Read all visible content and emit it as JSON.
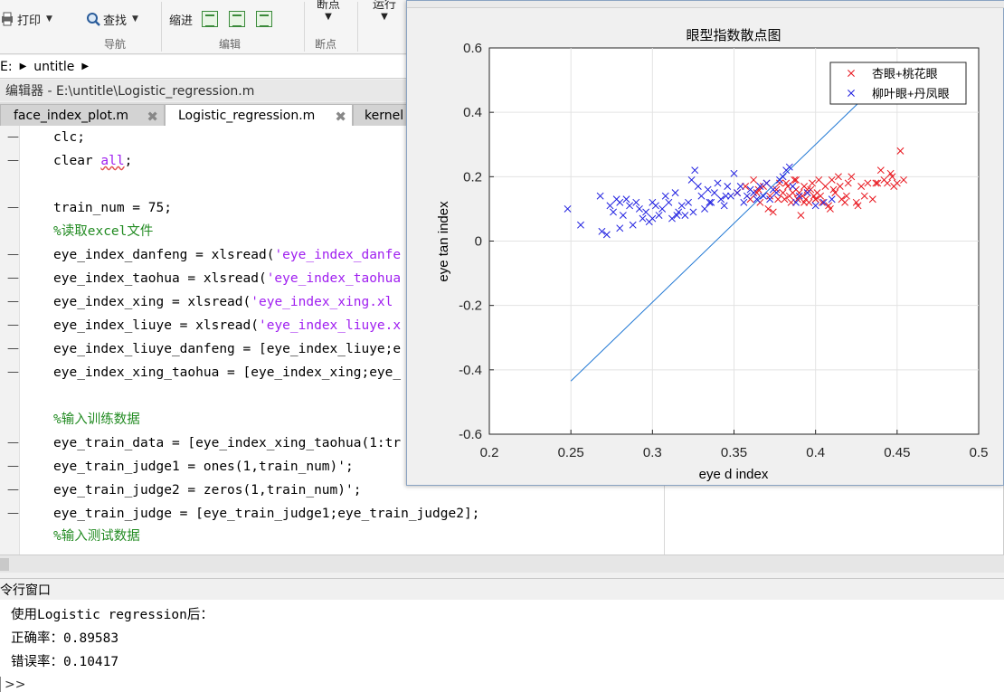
{
  "toolstrip": {
    "print_label": "打印",
    "find_label": "查找",
    "indent_label": "缩进",
    "breakpoint_label": "断点",
    "run_label": "运行",
    "groups": [
      "导航",
      "编辑",
      "断点"
    ]
  },
  "address": {
    "drive": "E:",
    "folder": "untitle"
  },
  "editor": {
    "title": "编辑器 - E:\\untitle\\Logistic_regression.m",
    "tabs": [
      {
        "label": "face_index_plot.m"
      },
      {
        "label": "Logistic_regression.m"
      },
      {
        "label": "kernel"
      }
    ],
    "lines": [
      "clc;",
      "clear ",
      "all",
      ";",
      "train_num = 75;",
      "%读取excel文件",
      "eye_index_danfeng = xlsread(",
      "'eye_index_danfe",
      "eye_index_taohua = xlsread(",
      "'eye_index_taohua",
      "eye_index_xing = xlsread(",
      "'eye_index_xing.xl",
      "eye_index_liuye = xlsread(",
      "'eye_index_liuye.x",
      "eye_index_liuye_danfeng = [eye_index_liuye;e",
      "eye_index_xing_taohua = [eye_index_xing;eye_",
      "%输入训练数据",
      "eye_train_data = [eye_index_xing_taohua(1:tr",
      "eye_train_judge1 = ones(1,train_num)';",
      "eye_train_judge2 = zeros(1,train_num)';",
      "eye_train_judge = [eye_train_judge1;eye_train_judge2];",
      "%输入测试数据"
    ]
  },
  "command_window": {
    "title": "令行窗口",
    "lines": [
      "使用Logistic regression后：",
      "正确率：0.89583",
      "错误率：0.10417"
    ],
    "prompt": ">>"
  },
  "colors": {
    "series1": "#e8141c",
    "series2": "#1f1fe0",
    "line": "#1f77d4",
    "comment": "#228b22",
    "string": "#a020f0"
  },
  "chart_data": {
    "type": "scatter",
    "title": "眼型指数散点图",
    "xlabel": "eye d index",
    "ylabel": "eye tan index",
    "xlim": [
      0.2,
      0.5
    ],
    "ylim": [
      -0.6,
      0.6
    ],
    "xticks": [
      "0.2",
      "0.25",
      "0.3",
      "0.35",
      "0.4",
      "0.45",
      "0.5"
    ],
    "yticks": [
      "0.6",
      "0.4",
      "0.2",
      "0",
      "-0.2",
      "-0.4",
      "-0.6"
    ],
    "grid": true,
    "legend_position": "top-right",
    "series": [
      {
        "name": "杏眼+桃花眼",
        "marker": "x",
        "x": [
          0.352,
          0.357,
          0.36,
          0.362,
          0.364,
          0.366,
          0.368,
          0.37,
          0.372,
          0.374,
          0.376,
          0.378,
          0.38,
          0.381,
          0.383,
          0.384,
          0.385,
          0.386,
          0.387,
          0.388,
          0.389,
          0.39,
          0.391,
          0.392,
          0.393,
          0.394,
          0.395,
          0.396,
          0.397,
          0.398,
          0.399,
          0.4,
          0.401,
          0.402,
          0.404,
          0.406,
          0.408,
          0.41,
          0.412,
          0.414,
          0.416,
          0.418,
          0.42,
          0.422,
          0.425,
          0.428,
          0.43,
          0.432,
          0.435,
          0.437,
          0.44,
          0.442,
          0.444,
          0.446,
          0.448,
          0.45,
          0.452,
          0.454,
          0.371,
          0.377,
          0.388,
          0.395,
          0.403,
          0.409,
          0.415,
          0.365,
          0.382,
          0.393,
          0.4,
          0.411,
          0.419,
          0.426,
          0.438,
          0.447
        ],
        "y": [
          0.15,
          0.17,
          0.13,
          0.19,
          0.15,
          0.12,
          0.17,
          0.18,
          0.14,
          0.09,
          0.16,
          0.18,
          0.15,
          0.13,
          0.17,
          0.14,
          0.12,
          0.15,
          0.19,
          0.16,
          0.13,
          0.15,
          0.08,
          0.14,
          0.17,
          0.13,
          0.15,
          0.12,
          0.16,
          0.18,
          0.14,
          0.13,
          0.15,
          0.19,
          0.12,
          0.17,
          0.11,
          0.19,
          0.15,
          0.2,
          0.13,
          0.12,
          0.18,
          0.2,
          0.12,
          0.17,
          0.14,
          0.18,
          0.13,
          0.18,
          0.22,
          0.19,
          0.18,
          0.21,
          0.17,
          0.18,
          0.28,
          0.19,
          0.1,
          0.13,
          0.19,
          0.16,
          0.14,
          0.1,
          0.17,
          0.16,
          0.18,
          0.12,
          0.13,
          0.16,
          0.14,
          0.11,
          0.18,
          0.2
        ]
      },
      {
        "name": "柳叶眼+丹凤眼",
        "marker": "x",
        "x": [
          0.248,
          0.256,
          0.268,
          0.269,
          0.272,
          0.274,
          0.276,
          0.278,
          0.28,
          0.282,
          0.284,
          0.286,
          0.288,
          0.29,
          0.292,
          0.294,
          0.296,
          0.298,
          0.3,
          0.302,
          0.304,
          0.306,
          0.308,
          0.31,
          0.312,
          0.314,
          0.316,
          0.318,
          0.32,
          0.322,
          0.324,
          0.326,
          0.328,
          0.33,
          0.332,
          0.334,
          0.336,
          0.338,
          0.34,
          0.342,
          0.344,
          0.346,
          0.348,
          0.35,
          0.352,
          0.354,
          0.356,
          0.358,
          0.36,
          0.362,
          0.364,
          0.366,
          0.368,
          0.37,
          0.372,
          0.374,
          0.376,
          0.378,
          0.38,
          0.382,
          0.384,
          0.386,
          0.388,
          0.39,
          0.395,
          0.4,
          0.405,
          0.41,
          0.28,
          0.3,
          0.315,
          0.325,
          0.335,
          0.345
        ],
        "y": [
          0.1,
          0.05,
          0.14,
          0.03,
          0.02,
          0.11,
          0.09,
          0.13,
          0.12,
          0.08,
          0.13,
          0.11,
          0.05,
          0.12,
          0.1,
          0.07,
          0.09,
          0.06,
          0.12,
          0.11,
          0.08,
          0.1,
          0.14,
          0.12,
          0.07,
          0.15,
          0.09,
          0.11,
          0.08,
          0.12,
          0.19,
          0.22,
          0.17,
          0.14,
          0.1,
          0.16,
          0.12,
          0.15,
          0.18,
          0.13,
          0.11,
          0.17,
          0.14,
          0.21,
          0.15,
          0.17,
          0.12,
          0.14,
          0.16,
          0.15,
          0.13,
          0.17,
          0.14,
          0.18,
          0.13,
          0.16,
          0.15,
          0.19,
          0.2,
          0.22,
          0.23,
          0.17,
          0.12,
          0.14,
          0.15,
          0.11,
          0.12,
          0.13,
          0.04,
          0.07,
          0.08,
          0.09,
          0.12,
          0.14
        ]
      }
    ],
    "decision_line": {
      "x": [
        0.25,
        0.452
      ],
      "y": [
        -0.435,
        0.555
      ]
    }
  }
}
